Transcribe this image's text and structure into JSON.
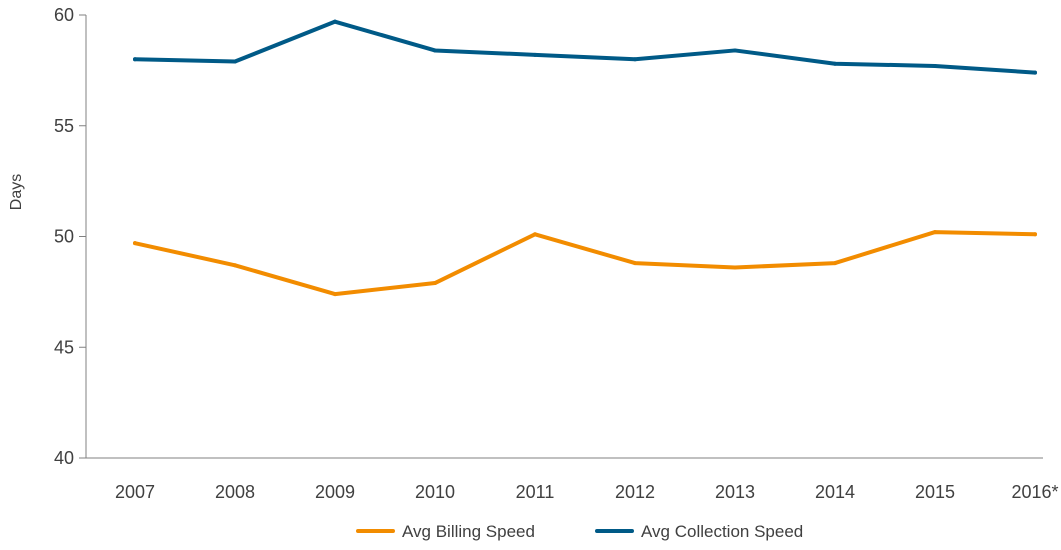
{
  "chart_data": {
    "type": "line",
    "title": "",
    "xlabel": "",
    "ylabel": "Days",
    "ylim": [
      40,
      60
    ],
    "yticks": [
      40,
      45,
      50,
      55,
      60
    ],
    "categories": [
      "2007",
      "2008",
      "2009",
      "2010",
      "2011",
      "2012",
      "2013",
      "2014",
      "2015",
      "2016*"
    ],
    "series": [
      {
        "name": "Avg Billing Speed",
        "color": "#F28C00",
        "values": [
          49.7,
          48.7,
          47.4,
          47.9,
          50.1,
          48.8,
          48.6,
          48.8,
          50.2,
          50.1
        ]
      },
      {
        "name": "Avg Collection Speed",
        "color": "#005A87",
        "values": [
          58.0,
          57.9,
          59.7,
          58.4,
          58.2,
          58.0,
          58.4,
          57.8,
          57.7,
          57.4
        ]
      }
    ],
    "grid": false,
    "legend": "bottom-center"
  }
}
